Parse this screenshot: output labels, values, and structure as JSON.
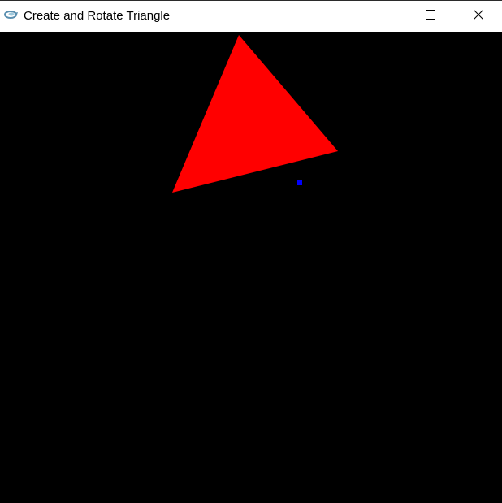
{
  "window": {
    "title": "Create and Rotate Triangle",
    "icon": "opengl-app-icon",
    "controls": {
      "minimize_icon": "minimize-icon",
      "maximize_icon": "maximize-icon",
      "close_icon": "close-icon"
    }
  },
  "scene": {
    "background_color": "#000000",
    "triangle_color": "#ff0000",
    "pivot_point_color": "#0000ff"
  }
}
